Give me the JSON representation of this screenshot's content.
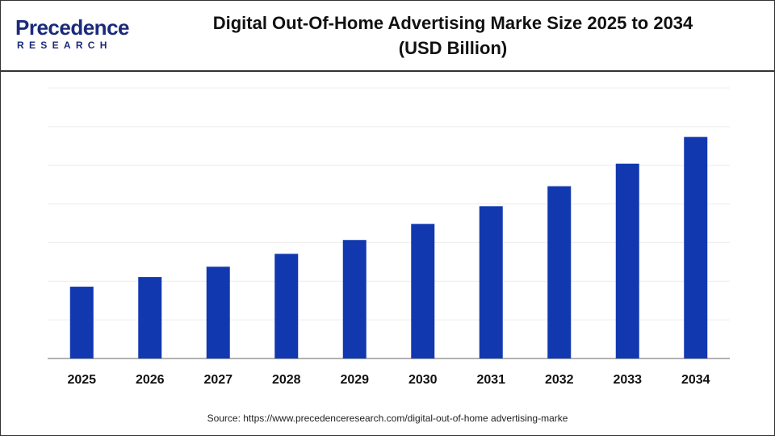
{
  "logo": {
    "main": "Precedence",
    "sub": "RESEARCH"
  },
  "chart_data": {
    "type": "bar",
    "title": "Digital Out-Of-Home Advertising Marke Size 2025 to 2034",
    "title_line2": "(USD Billion)",
    "categories": [
      "2025",
      "2026",
      "2027",
      "2028",
      "2029",
      "2030",
      "2031",
      "2032",
      "2033",
      "2034"
    ],
    "values": [
      22.3,
      25.3,
      28.5,
      32.5,
      36.8,
      41.8,
      47.3,
      53.5,
      60.5,
      68.8
    ],
    "ylim": [
      0,
      84
    ],
    "grid": true,
    "bar_color": "#1238b0",
    "xlabel": "",
    "ylabel": ""
  },
  "source": "Source: https://www.precedenceresearch.com/digital-out-of-home advertising-marke"
}
